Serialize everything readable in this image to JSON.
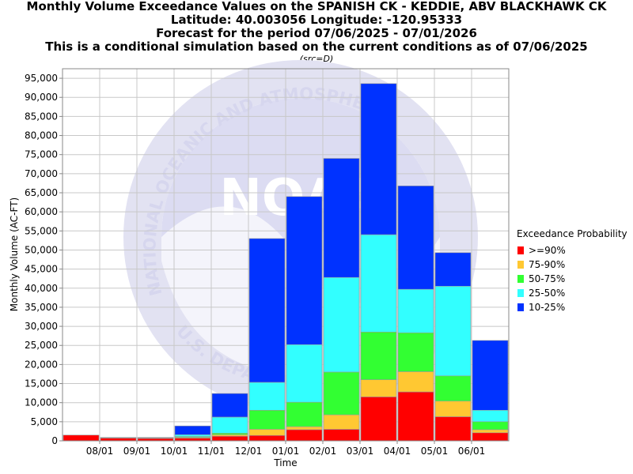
{
  "titles": [
    "Monthly Volume Exceedance Values on the SPANISH CK - KEDDIE, ABV BLACKHAWK CK",
    "Latitude: 40.003056 Longitude: -120.95333",
    "Forecast for the period 07/06/2025 - 07/01/2026",
    "This is a conditional simulation based on the current conditions as of 07/06/2025"
  ],
  "source_note": "(src=D)",
  "watermark": {
    "arc_top": "NATIONAL OCEANIC AND ATMOSPHERIC",
    "arc_bottom": "U.S. DEPARTMENT",
    "logo": "NOAA"
  },
  "legend": {
    "title": "Exceedance Probability",
    "items": [
      {
        "label": ">=90%",
        "color": "#ff0000"
      },
      {
        "label": "75-90%",
        "color": "#ffc832"
      },
      {
        "label": "50-75%",
        "color": "#32ff32"
      },
      {
        "label": "25-50%",
        "color": "#32ffff"
      },
      {
        "label": "10-25%",
        "color": "#0032ff"
      }
    ]
  },
  "chart_data": {
    "type": "bar",
    "xlabel": "Time",
    "ylabel": "Monthly Volume (AC-FT)",
    "ylim": [
      0,
      97500
    ],
    "ytick_step": 5000,
    "grid": true,
    "legend_position": "right",
    "x_tick_labels": [
      "08/01",
      "09/01",
      "10/01",
      "11/01",
      "12/01",
      "01/01",
      "02/01",
      "03/01",
      "04/01",
      "05/01",
      "06/01"
    ],
    "categories": [
      "Jul 2025",
      "Aug 2025",
      "Sep 2025",
      "Oct 2025",
      "Nov 2025",
      "Dec 2025",
      "Jan 2026",
      "Feb 2026",
      "Mar 2026",
      "Apr 2026",
      "May 2026",
      "Jun 2026"
    ],
    "bar_note": "values are cumulative exceedance levels; each colored segment spans from the next-higher probability level to its own",
    "series": [
      {
        "name": ">=90%",
        "color": "#ff0000",
        "values": [
          1500,
          700,
          600,
          700,
          1200,
          1400,
          2900,
          3000,
          11500,
          12800,
          6300,
          2100
        ]
      },
      {
        "name": "75-90%",
        "color": "#ffc832",
        "values": [
          1500,
          700,
          600,
          900,
          1600,
          3000,
          3700,
          6800,
          16000,
          18100,
          10400,
          2900
        ]
      },
      {
        "name": "50-75%",
        "color": "#32ff32",
        "values": [
          1500,
          700,
          700,
          1100,
          2000,
          8000,
          10100,
          18000,
          28500,
          28300,
          17000,
          5000
        ]
      },
      {
        "name": "25-50%",
        "color": "#32ffff",
        "values": [
          1500,
          800,
          800,
          1600,
          6200,
          15300,
          25200,
          42800,
          54000,
          39700,
          40500,
          8000
        ]
      },
      {
        "name": "10-25%",
        "color": "#0032ff",
        "values": [
          1500,
          900,
          900,
          3900,
          12400,
          53000,
          64000,
          74000,
          93600,
          66800,
          49300,
          26300
        ]
      }
    ]
  }
}
